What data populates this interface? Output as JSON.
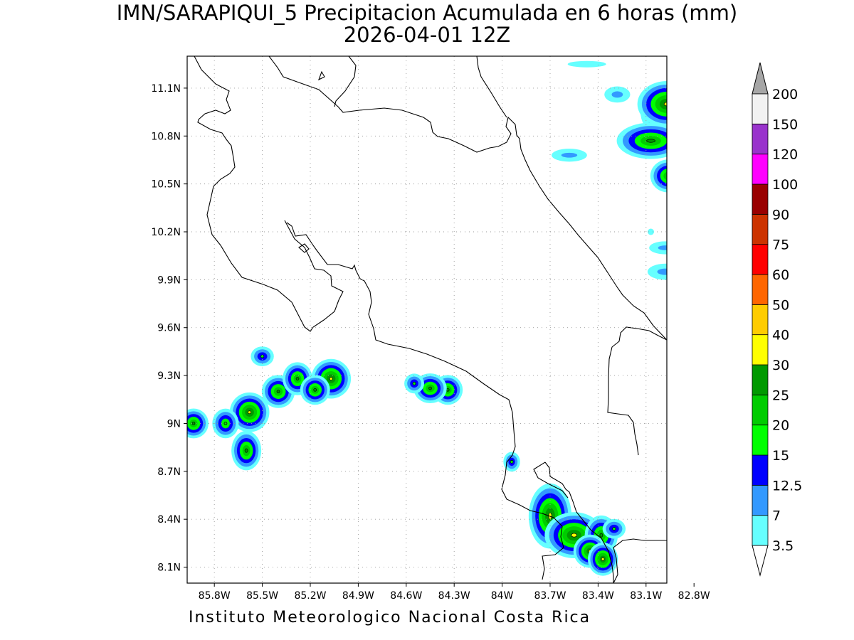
{
  "title": {
    "line1": "IMN/SARAPIQUI_5 Precipitacion Acumulada en 6 horas (mm)",
    "line2": "2026-04-01 12Z"
  },
  "footer": "Instituto Meteorologico Nacional Costa Rica",
  "axes": {
    "lon_ticks": [
      "85.8W",
      "85.5W",
      "85.2W",
      "84.9W",
      "84.6W",
      "84.3W",
      "84W",
      "83.7W",
      "83.4W",
      "83.1W",
      "82.8W"
    ],
    "lat_ticks": [
      "11.1N",
      "10.8N",
      "10.5N",
      "10.2N",
      "9.9N",
      "9.6N",
      "9.3N",
      "9N",
      "8.7N",
      "8.4N",
      "8.1N"
    ],
    "lon_range": [
      -85.97,
      -82.97
    ],
    "lat_range": [
      8.0,
      11.3
    ],
    "grid": "dotted"
  },
  "colorbar": {
    "levels": [
      "3.5",
      "7",
      "12.5",
      "15",
      "20",
      "25",
      "30",
      "40",
      "50",
      "60",
      "75",
      "90",
      "100",
      "120",
      "150",
      "200"
    ],
    "colors": [
      "#66ffff",
      "#3399ff",
      "#0000ff",
      "#00ff00",
      "#00cc00",
      "#009900",
      "#ffff00",
      "#ffcc00",
      "#ff6600",
      "#ff0000",
      "#cc3300",
      "#990000",
      "#ff00ff",
      "#9933cc",
      "#f2f2f2"
    ],
    "over_color": "#a6a6a6",
    "under_color": "#ffffff"
  },
  "precip_cells": [
    {
      "lon": -82.86,
      "lat": 10.95,
      "rx": 0.2,
      "ry": 0.13,
      "peak": "40"
    },
    {
      "lon": -82.97,
      "lat": 11.0,
      "rx": 0.12,
      "ry": 0.08,
      "peak": "30"
    },
    {
      "lon": -83.07,
      "lat": 10.77,
      "rx": 0.16,
      "ry": 0.06,
      "peak": "25"
    },
    {
      "lon": -82.96,
      "lat": 10.55,
      "rx": 0.06,
      "ry": 0.05,
      "peak": "25"
    },
    {
      "lon": -83.28,
      "lat": 11.06,
      "rx": 0.07,
      "ry": 0.04,
      "peak": "7"
    },
    {
      "lon": -83.58,
      "lat": 10.68,
      "rx": 0.1,
      "ry": 0.03,
      "peak": "7"
    },
    {
      "lon": -83.47,
      "lat": 11.25,
      "rx": 0.12,
      "ry": 0.02,
      "peak": "3.5"
    },
    {
      "lon": -85.58,
      "lat": 9.07,
      "rx": 0.06,
      "ry": 0.06,
      "peak": "30"
    },
    {
      "lon": -85.6,
      "lat": 8.83,
      "rx": 0.04,
      "ry": 0.07,
      "peak": "25"
    },
    {
      "lon": -85.4,
      "lat": 9.2,
      "rx": 0.05,
      "ry": 0.05,
      "peak": "25"
    },
    {
      "lon": -85.28,
      "lat": 9.28,
      "rx": 0.04,
      "ry": 0.05,
      "peak": "25"
    },
    {
      "lon": -85.07,
      "lat": 9.28,
      "rx": 0.06,
      "ry": 0.06,
      "peak": "30"
    },
    {
      "lon": -85.17,
      "lat": 9.21,
      "rx": 0.04,
      "ry": 0.04,
      "peak": "25"
    },
    {
      "lon": -85.5,
      "lat": 9.42,
      "rx": 0.04,
      "ry": 0.03,
      "peak": "15"
    },
    {
      "lon": -85.93,
      "lat": 9.0,
      "rx": 0.04,
      "ry": 0.04,
      "peak": "25"
    },
    {
      "lon": -85.73,
      "lat": 9.0,
      "rx": 0.04,
      "ry": 0.05,
      "peak": "20"
    },
    {
      "lon": -84.34,
      "lat": 9.21,
      "rx": 0.04,
      "ry": 0.04,
      "peak": "25"
    },
    {
      "lon": -84.45,
      "lat": 9.22,
      "rx": 0.05,
      "ry": 0.04,
      "peak": "25"
    },
    {
      "lon": -84.55,
      "lat": 9.25,
      "rx": 0.03,
      "ry": 0.03,
      "peak": "15"
    },
    {
      "lon": -83.7,
      "lat": 8.42,
      "rx": 0.07,
      "ry": 0.14,
      "peak": "30"
    },
    {
      "lon": -83.55,
      "lat": 8.3,
      "rx": 0.12,
      "ry": 0.08,
      "peak": "30"
    },
    {
      "lon": -83.38,
      "lat": 8.3,
      "rx": 0.05,
      "ry": 0.07,
      "peak": "25"
    },
    {
      "lon": -83.45,
      "lat": 8.2,
      "rx": 0.04,
      "ry": 0.04,
      "peak": "30"
    },
    {
      "lon": -83.37,
      "lat": 8.15,
      "rx": 0.03,
      "ry": 0.04,
      "peak": "30"
    },
    {
      "lon": -83.3,
      "lat": 8.34,
      "rx": 0.04,
      "ry": 0.03,
      "peak": "15"
    },
    {
      "lon": -83.94,
      "lat": 8.76,
      "rx": 0.02,
      "ry": 0.03,
      "peak": "15"
    },
    {
      "lon": -83.07,
      "lat": 10.2,
      "rx": 0.02,
      "ry": 0.02,
      "peak": "3.5"
    },
    {
      "lon": -82.98,
      "lat": 9.95,
      "rx": 0.1,
      "ry": 0.04,
      "peak": "7"
    },
    {
      "lon": -82.98,
      "lat": 10.1,
      "rx": 0.09,
      "ry": 0.03,
      "peak": "7"
    }
  ]
}
